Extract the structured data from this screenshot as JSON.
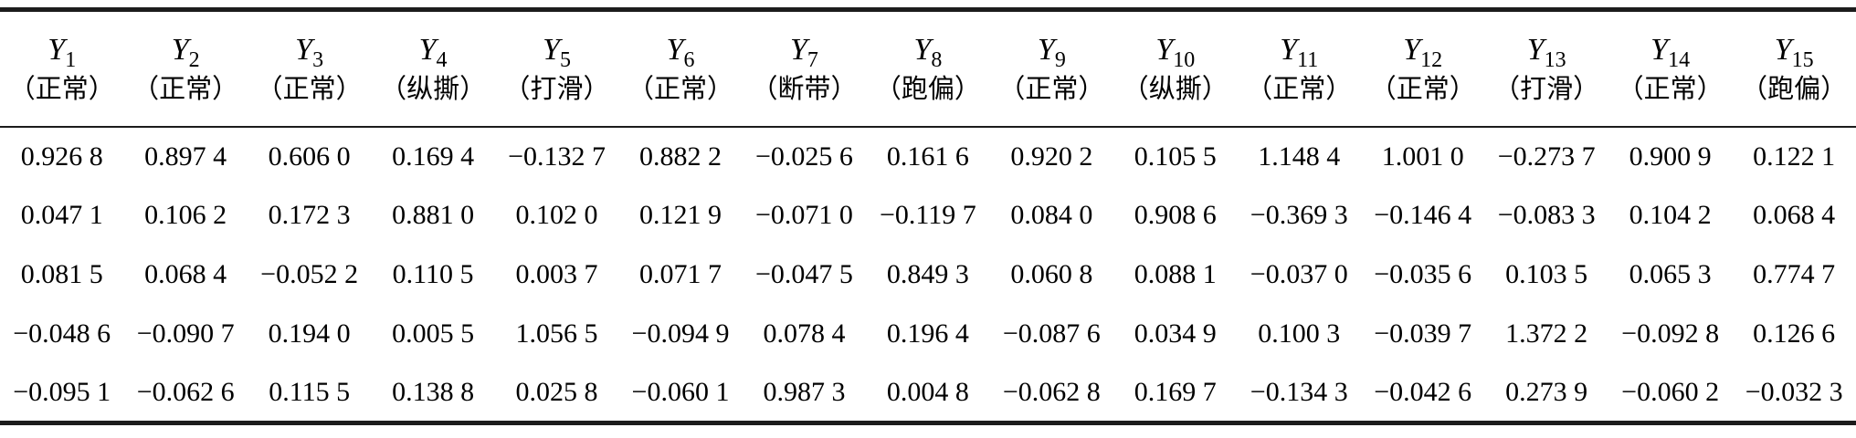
{
  "table": {
    "columns": [
      {
        "var": "Y",
        "sub": "1",
        "label": "（正常）"
      },
      {
        "var": "Y",
        "sub": "2",
        "label": "（正常）"
      },
      {
        "var": "Y",
        "sub": "3",
        "label": "（正常）"
      },
      {
        "var": "Y",
        "sub": "4",
        "label": "（纵撕）"
      },
      {
        "var": "Y",
        "sub": "5",
        "label": "（打滑）"
      },
      {
        "var": "Y",
        "sub": "6",
        "label": "（正常）"
      },
      {
        "var": "Y",
        "sub": "7",
        "label": "（断带）"
      },
      {
        "var": "Y",
        "sub": "8",
        "label": "（跑偏）"
      },
      {
        "var": "Y",
        "sub": "9",
        "label": "（正常）"
      },
      {
        "var": "Y",
        "sub": "10",
        "label": "（纵撕）"
      },
      {
        "var": "Y",
        "sub": "11",
        "label": "（正常）"
      },
      {
        "var": "Y",
        "sub": "12",
        "label": "（正常）"
      },
      {
        "var": "Y",
        "sub": "13",
        "label": "（打滑）"
      },
      {
        "var": "Y",
        "sub": "14",
        "label": "（正常）"
      },
      {
        "var": "Y",
        "sub": "15",
        "label": "（跑偏）"
      }
    ],
    "rows": [
      [
        "0.926 8",
        "0.897 4",
        "0.606 0",
        "0.169 4",
        "−0.132 7",
        "0.882 2",
        "−0.025 6",
        "0.161 6",
        "0.920 2",
        "0.105 5",
        "1.148 4",
        "1.001 0",
        "−0.273 7",
        "0.900 9",
        "0.122 1"
      ],
      [
        "0.047 1",
        "0.106 2",
        "0.172 3",
        "0.881 0",
        "0.102 0",
        "0.121 9",
        "−0.071 0",
        "−0.119 7",
        "0.084 0",
        "0.908 6",
        "−0.369 3",
        "−0.146 4",
        "−0.083 3",
        "0.104 2",
        "0.068 4"
      ],
      [
        "0.081 5",
        "0.068 4",
        "−0.052 2",
        "0.110 5",
        "0.003 7",
        "0.071 7",
        "−0.047 5",
        "0.849 3",
        "0.060 8",
        "0.088 1",
        "−0.037 0",
        "−0.035 6",
        "0.103 5",
        "0.065 3",
        "0.774 7"
      ],
      [
        "−0.048 6",
        "−0.090 7",
        "0.194 0",
        "0.005 5",
        "1.056 5",
        "−0.094 9",
        "0.078 4",
        "0.196 4",
        "−0.087 6",
        "0.034 9",
        "0.100 3",
        "−0.039 7",
        "1.372 2",
        "−0.092 8",
        "0.126 6"
      ],
      [
        "−0.095 1",
        "−0.062 6",
        "0.115 5",
        "0.138 8",
        "0.025 8",
        "−0.060 1",
        "0.987 3",
        "0.004 8",
        "−0.062 8",
        "0.169 7",
        "−0.134 3",
        "−0.042 6",
        "0.273 9",
        "−0.060 2",
        "−0.032 3"
      ]
    ]
  },
  "colors": {
    "rule": "#1c1c1c",
    "text": "#000000",
    "background": "#ffffff"
  },
  "chart_data": {
    "type": "table",
    "title": "",
    "columns": [
      "Y1 (正常)",
      "Y2 (正常)",
      "Y3 (正常)",
      "Y4 (纵撕)",
      "Y5 (打滑)",
      "Y6 (正常)",
      "Y7 (断带)",
      "Y8 (跑偏)",
      "Y9 (正常)",
      "Y10 (纵撕)",
      "Y11 (正常)",
      "Y12 (正常)",
      "Y13 (打滑)",
      "Y14 (正常)",
      "Y15 (跑偏)"
    ],
    "values": [
      [
        0.9268,
        0.8974,
        0.606,
        0.1694,
        -0.1327,
        0.8822,
        -0.0256,
        0.1616,
        0.9202,
        0.1055,
        1.1484,
        1.001,
        -0.2737,
        0.9009,
        0.1221
      ],
      [
        0.0471,
        0.1062,
        0.1723,
        0.881,
        0.102,
        0.1219,
        -0.071,
        -0.1197,
        0.084,
        0.9086,
        -0.3693,
        -0.1464,
        -0.0833,
        0.1042,
        0.0684
      ],
      [
        0.0815,
        0.0684,
        -0.0522,
        0.1105,
        0.0037,
        0.0717,
        -0.0475,
        0.8493,
        0.0608,
        0.0881,
        -0.037,
        -0.0356,
        0.1035,
        0.0653,
        0.7747
      ],
      [
        -0.0486,
        -0.0907,
        0.194,
        0.0055,
        1.0565,
        -0.0949,
        0.0784,
        0.1964,
        -0.0876,
        0.0349,
        0.1003,
        -0.0397,
        1.3722,
        -0.0928,
        0.1266
      ],
      [
        -0.0951,
        -0.0626,
        0.1155,
        0.1388,
        0.0258,
        -0.0601,
        0.9873,
        0.0048,
        -0.0628,
        0.1697,
        -0.1343,
        -0.0426,
        0.2739,
        -0.0602,
        -0.0323
      ]
    ]
  }
}
